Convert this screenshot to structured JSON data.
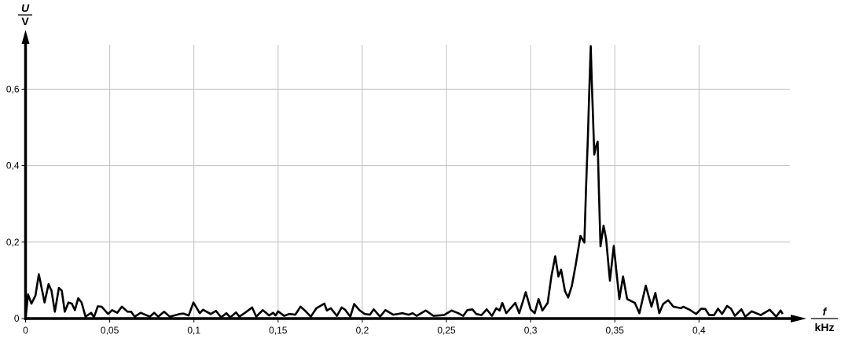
{
  "chart_data": {
    "type": "line",
    "title": "",
    "xlabel": {
      "symbol": "f",
      "unit": "kHz"
    },
    "ylabel": {
      "symbol": "U",
      "unit": "V"
    },
    "xlim": [
      0,
      0.454
    ],
    "ylim": [
      0,
      0.716
    ],
    "grid": true,
    "x_ticks": [
      0,
      0.05,
      0.1,
      0.15,
      0.2,
      0.25,
      0.3,
      0.35,
      0.4
    ],
    "x_tick_labels": [
      "0",
      "0,05",
      "0,1",
      "0,15",
      "0,2",
      "0,25",
      "0,3",
      "0,35",
      "0,4"
    ],
    "y_ticks": [
      0,
      0.2,
      0.4,
      0.6
    ],
    "y_tick_labels": [
      "0",
      "0,2",
      "0,4",
      "0,6"
    ],
    "line_color": "#000000",
    "grid_color": "#c0c0c0",
    "series": [
      {
        "x": [
          0,
          0.0015,
          0.0035,
          0.0059,
          0.0079,
          0.0113,
          0.0137,
          0.0154,
          0.0174,
          0.0198,
          0.0215,
          0.0233,
          0.0255,
          0.0275,
          0.0293,
          0.0313,
          0.0333,
          0.0356,
          0.039,
          0.0406,
          0.0429,
          0.0452,
          0.049,
          0.0514,
          0.0545,
          0.0572,
          0.0606,
          0.0627,
          0.0648,
          0.0684,
          0.0738,
          0.0764,
          0.0788,
          0.0823,
          0.0857,
          0.0915,
          0.0938,
          0.0969,
          0.0997,
          0.1035,
          0.1054,
          0.11,
          0.1131,
          0.1162,
          0.1193,
          0.1216,
          0.125,
          0.127,
          0.13,
          0.1346,
          0.137,
          0.1409,
          0.1447,
          0.147,
          0.1485,
          0.15,
          0.1536,
          0.1566,
          0.1602,
          0.1633,
          0.1659,
          0.1694,
          0.1728,
          0.1775,
          0.179,
          0.1813,
          0.1849,
          0.1878,
          0.1898,
          0.1929,
          0.1952,
          0.1983,
          0.2014,
          0.2045,
          0.2068,
          0.2106,
          0.2137,
          0.2184,
          0.2238,
          0.2276,
          0.2299,
          0.2323,
          0.2377,
          0.2423,
          0.2485,
          0.2531,
          0.257,
          0.26,
          0.2624,
          0.2654,
          0.2677,
          0.2708,
          0.2739,
          0.277,
          0.2796,
          0.2816,
          0.2832,
          0.2855,
          0.2909,
          0.2932,
          0.2971,
          0.3,
          0.3024,
          0.3047,
          0.307,
          0.3101,
          0.3123,
          0.3146,
          0.3165,
          0.3181,
          0.3204,
          0.3223,
          0.3245,
          0.3268,
          0.3296,
          0.3319,
          0.3329,
          0.334,
          0.3348,
          0.3357,
          0.3363,
          0.3369,
          0.3378,
          0.3387,
          0.3398,
          0.3405,
          0.3415,
          0.3433,
          0.3448,
          0.3471,
          0.3494,
          0.3512,
          0.3527,
          0.3549,
          0.3573,
          0.3619,
          0.3646,
          0.3684,
          0.3718,
          0.3741,
          0.3764,
          0.3787,
          0.3817,
          0.3848,
          0.3893,
          0.3906,
          0.3945,
          0.3983,
          0.4014,
          0.4037,
          0.406,
          0.409,
          0.4113,
          0.4137,
          0.4167,
          0.419,
          0.4213,
          0.4252,
          0.4275,
          0.4313,
          0.4367,
          0.442,
          0.4459,
          0.4485,
          0.4497
        ],
        "y": [
          0,
          0.063,
          0.039,
          0.06,
          0.116,
          0.042,
          0.09,
          0.073,
          0.018,
          0.08,
          0.073,
          0.018,
          0.042,
          0.039,
          0.022,
          0.053,
          0.042,
          0.005,
          0.015,
          0.003,
          0.032,
          0.031,
          0.012,
          0.022,
          0.015,
          0.031,
          0.018,
          0.018,
          0.005,
          0.015,
          0.005,
          0.015,
          0.005,
          0.018,
          0.005,
          0.012,
          0.013,
          0.008,
          0.042,
          0.014,
          0.023,
          0.012,
          0.02,
          0.003,
          0.014,
          0.003,
          0.016,
          0.005,
          0.014,
          0.029,
          0.005,
          0.022,
          0.008,
          0.015,
          0.008,
          0.019,
          0.007,
          0.012,
          0.01,
          0.031,
          0.021,
          0.005,
          0.027,
          0.039,
          0.021,
          0.027,
          0.007,
          0.029,
          0.023,
          0.005,
          0.038,
          0.022,
          0.012,
          0.01,
          0.024,
          0.005,
          0.022,
          0.01,
          0.014,
          0.01,
          0.014,
          0.007,
          0.021,
          0.007,
          0.009,
          0.021,
          0.014,
          0.007,
          0.022,
          0.024,
          0.012,
          0.009,
          0.024,
          0.007,
          0.027,
          0.021,
          0.041,
          0.014,
          0.041,
          0.014,
          0.069,
          0.024,
          0.014,
          0.051,
          0.021,
          0.041,
          0.11,
          0.163,
          0.11,
          0.128,
          0.072,
          0.055,
          0.086,
          0.141,
          0.216,
          0.199,
          0.34,
          0.477,
          0.593,
          0.713,
          0.621,
          0.545,
          0.429,
          0.449,
          0.463,
          0.34,
          0.189,
          0.243,
          0.209,
          0.099,
          0.19,
          0.113,
          0.051,
          0.11,
          0.051,
          0.041,
          0.014,
          0.086,
          0.031,
          0.067,
          0.014,
          0.038,
          0.048,
          0.031,
          0.027,
          0.031,
          0.023,
          0.012,
          0.026,
          0.025,
          0.009,
          0.009,
          0.026,
          0.012,
          0.033,
          0.026,
          0.007,
          0.024,
          0.005,
          0.019,
          0.009,
          0.023,
          0.005,
          0.021,
          0.012
        ]
      }
    ]
  }
}
